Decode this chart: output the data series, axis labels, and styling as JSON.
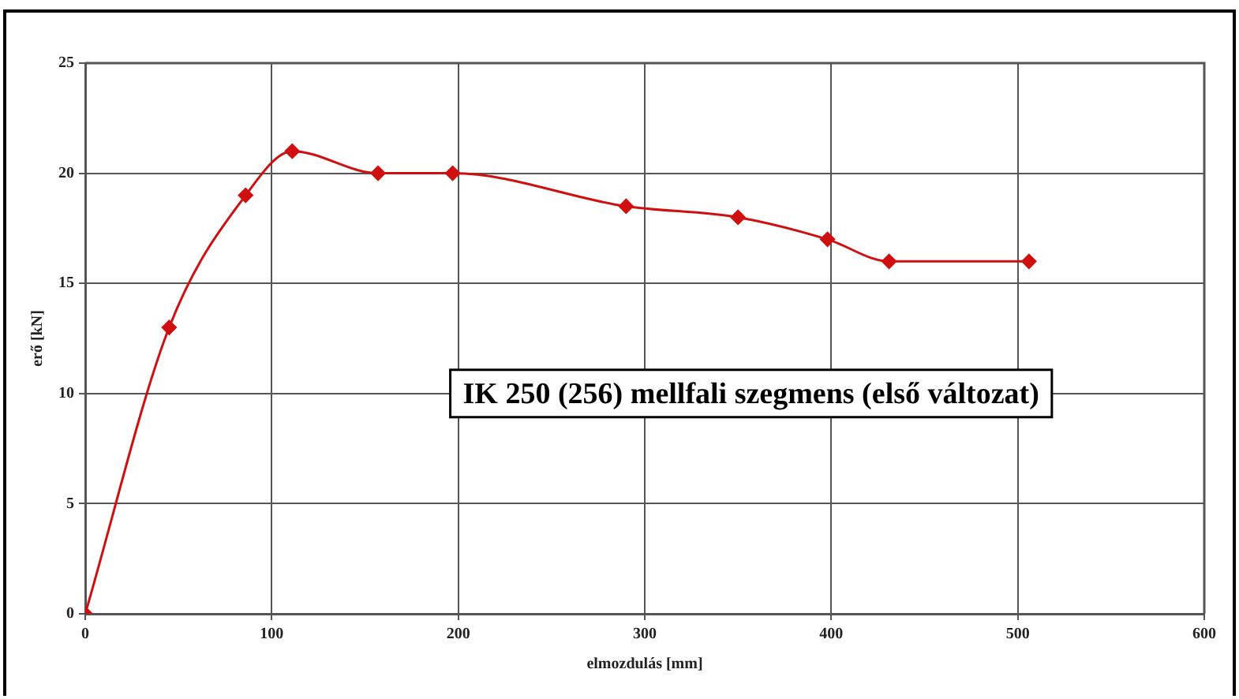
{
  "chart_data": {
    "type": "line",
    "xlabel": "elmozdulás [mm]",
    "ylabel": "erő [kN]",
    "annotations": [
      "IK 250 (256) mellfali szegmens (első változat)"
    ],
    "series": [
      {
        "color": "#d01010",
        "x": [
          0,
          45,
          86,
          111,
          157,
          197,
          290,
          350,
          398,
          431,
          506
        ],
        "values": [
          0,
          13,
          19,
          21,
          20,
          20,
          18.5,
          18,
          17,
          16,
          16
        ]
      }
    ],
    "xlim": [
      0,
      600
    ],
    "xticks": [
      0,
      100,
      200,
      300,
      400,
      500,
      600
    ],
    "ylim": [
      0,
      25
    ],
    "yticks": [
      0,
      5,
      10,
      15,
      20,
      25
    ],
    "grid": true,
    "legend": false,
    "marker": "diamond",
    "line_style": "solid"
  }
}
